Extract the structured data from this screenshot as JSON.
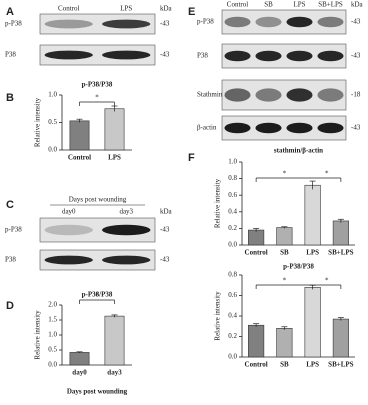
{
  "panel_letters": [
    "A",
    "B",
    "C",
    "D",
    "E",
    "F"
  ],
  "blot_a": {
    "lanes": [
      "Control",
      "LPS"
    ],
    "kda": "kDa",
    "rows": [
      {
        "name": "p-P38",
        "marker": "-43"
      },
      {
        "name": "P38",
        "marker": "-43"
      }
    ]
  },
  "blot_c": {
    "header": "Days post wounding",
    "lanes": [
      "day0",
      "day3"
    ],
    "kda": "kDa",
    "rows": [
      {
        "name": "p-P38",
        "marker": "-43"
      },
      {
        "name": "P38",
        "marker": "-43"
      }
    ]
  },
  "blot_e": {
    "lanes": [
      "Control",
      "SB",
      "LPS",
      "SB+LPS"
    ],
    "kda": "kDa",
    "rows": [
      {
        "name": "p-P38",
        "marker": "-43"
      },
      {
        "name": "P38",
        "marker": "-43"
      },
      {
        "name": "Stathmin",
        "marker": "-18"
      },
      {
        "name": "β-actin",
        "marker": "-43"
      }
    ]
  },
  "chart_data": [
    {
      "type": "bar",
      "title": "p-P38/P38",
      "y_label": "Relative intensity",
      "categories": [
        "Control",
        "LPS"
      ],
      "values": [
        0.53,
        0.75
      ],
      "errors": [
        0.03,
        0.05
      ],
      "colors": [
        "#808080",
        "#c8c8c8"
      ],
      "ylim": [
        0,
        1.0
      ],
      "yticks": [
        {
          "value": 0,
          "label": "0.0"
        },
        0.5,
        {
          "value": 1.0,
          "label": "1.0"
        }
      ],
      "annotations": [
        "*"
      ]
    },
    {
      "type": "bar",
      "title": "p-P38/P38",
      "y_label": "Relative intensity",
      "x_label": "Days post wounding",
      "categories": [
        "day0",
        "day3"
      ],
      "values": [
        0.42,
        1.63
      ],
      "errors": [
        0.02,
        0.04
      ],
      "colors": [
        "#808080",
        "#c8c8c8"
      ],
      "ylim": [
        0,
        2.0
      ],
      "yticks": [
        {
          "value": 0,
          "label": "0.0"
        },
        0.5,
        {
          "value": 1.0,
          "label": "1.0"
        },
        1.5,
        {
          "value": 2.0,
          "label": "2.0"
        }
      ],
      "annotations": [
        "*"
      ]
    },
    {
      "type": "bar",
      "title": "stathmin/β-actin",
      "y_label": "Relative intensity",
      "categories": [
        "Control",
        "SB",
        "LPS",
        "SB+LPS"
      ],
      "values": [
        0.18,
        0.21,
        0.72,
        0.29
      ],
      "errors": [
        0.02,
        0.01,
        0.05,
        0.02
      ],
      "colors": [
        "#808080",
        "#b0b0b0",
        "#d8d8d8",
        "#a0a0a0"
      ],
      "ylim": [
        0,
        1.0
      ],
      "yticks": [
        {
          "value": 0,
          "label": "0.0"
        },
        0.2,
        0.4,
        0.6,
        0.8,
        {
          "value": 1.0,
          "label": "1.0"
        }
      ],
      "annotations": [
        "*",
        "*"
      ]
    },
    {
      "type": "bar",
      "title": "p-P38/P38",
      "y_label": "Relative intensity",
      "categories": [
        "Control",
        "SB",
        "LPS",
        "SB+LPS"
      ],
      "values": [
        0.31,
        0.28,
        0.68,
        0.37
      ],
      "errors": [
        0.015,
        0.015,
        0.02,
        0.015
      ],
      "colors": [
        "#808080",
        "#b0b0b0",
        "#d8d8d8",
        "#a0a0a0"
      ],
      "ylim": [
        0,
        0.8
      ],
      "yticks": [
        {
          "value": 0,
          "label": "0.0"
        },
        0.2,
        0.4,
        0.6,
        0.8
      ],
      "annotations": [
        "*",
        "*"
      ]
    }
  ]
}
